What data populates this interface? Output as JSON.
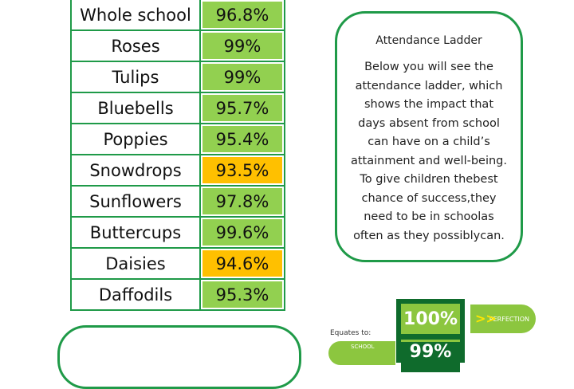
{
  "table": {
    "rows": [
      {
        "name": "Whole school",
        "value": "96.8%",
        "color": "#92d050"
      },
      {
        "name": "Roses",
        "value": "99%",
        "color": "#92d050"
      },
      {
        "name": "Tulips",
        "value": "99%",
        "color": "#92d050"
      },
      {
        "name": "Bluebells",
        "value": "95.7%",
        "color": "#92d050"
      },
      {
        "name": "Poppies",
        "value": "95.4%",
        "color": "#92d050"
      },
      {
        "name": "Snowdrops",
        "value": "93.5%",
        "color": "#ffc000"
      },
      {
        "name": "Sunflowers",
        "value": "97.8%",
        "color": "#92d050"
      },
      {
        "name": "Buttercups",
        "value": "99.6%",
        "color": "#92d050"
      },
      {
        "name": "Daisies",
        "value": "94.6%",
        "color": "#ffc000"
      },
      {
        "name": "Daffodils",
        "value": "95.3%",
        "color": "#92d050"
      }
    ]
  },
  "info": {
    "title": "Attendance Ladder",
    "lines": [
      "Below you will see the",
      "attendance ladder, which",
      "shows the impact that",
      "days absent from school",
      "can have on a child’s",
      "attainment and well-being.",
      "To give children thebest",
      "chance of success,they",
      "need to be in schoolas",
      "often as they possiblycan."
    ]
  },
  "ladder": {
    "equates": "Equates to:",
    "top": "100%",
    "top_label": "PERFECTION",
    "second": "99%",
    "school": "SCHOOL"
  }
}
